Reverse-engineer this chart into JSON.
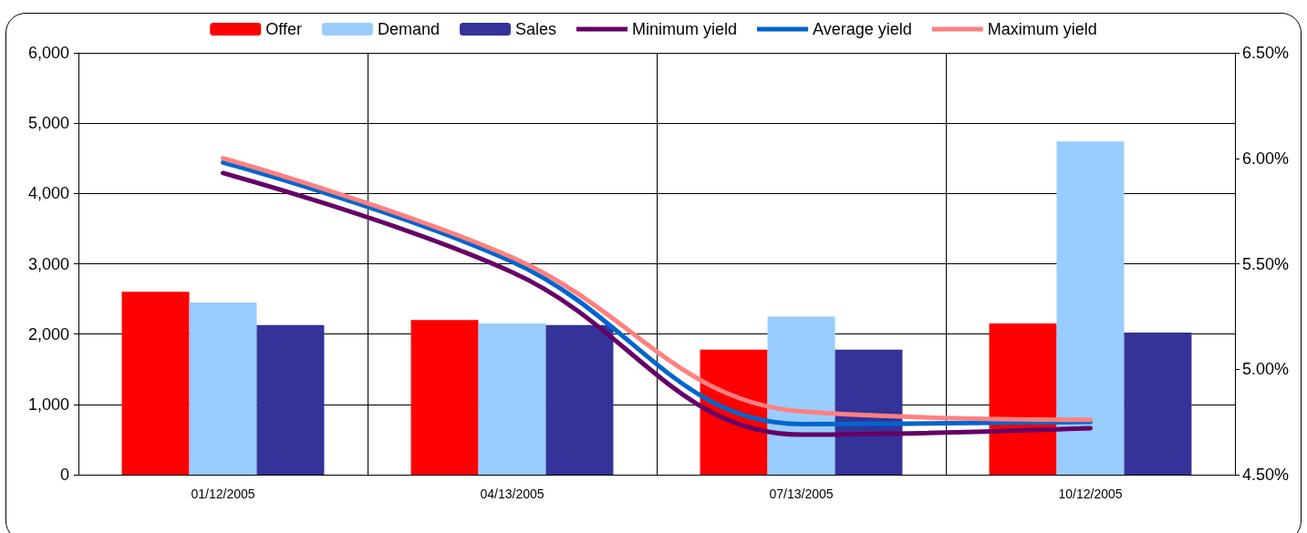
{
  "chart_data": {
    "type": "bar",
    "categories": [
      "01/12/2005",
      "04/13/2005",
      "07/13/2005",
      "10/12/2005"
    ],
    "series": [
      {
        "name": "Offer",
        "color": "#ff0000",
        "values": [
          2600,
          2200,
          1780,
          2150
        ]
      },
      {
        "name": "Demand",
        "color": "#99ccff",
        "values": [
          2450,
          2150,
          2250,
          4740
        ]
      },
      {
        "name": "Sales",
        "color": "#333399",
        "values": [
          2130,
          2130,
          1780,
          2020
        ]
      },
      {
        "name": "Minimum yield",
        "type": "line",
        "axis": "y2",
        "color": "#660066",
        "values": [
          5.93,
          5.46,
          4.69,
          4.72
        ]
      },
      {
        "name": "Average yield",
        "type": "line",
        "axis": "y2",
        "color": "#0066cc",
        "values": [
          5.98,
          5.51,
          4.74,
          4.75
        ]
      },
      {
        "name": "Maximum yield",
        "type": "line",
        "axis": "y2",
        "color": "#ff8080",
        "values": [
          6.0,
          5.53,
          4.8,
          4.76
        ]
      }
    ],
    "ylim": [
      0,
      6000
    ],
    "yticks": [
      {
        "value": 0,
        "label": "0"
      },
      {
        "value": 1000,
        "label": "1,000"
      },
      {
        "value": 2000,
        "label": "2,000"
      },
      {
        "value": 3000,
        "label": "3,000"
      },
      {
        "value": 4000,
        "label": "4,000"
      },
      {
        "value": 5000,
        "label": "5,000"
      },
      {
        "value": 6000,
        "label": "6,000"
      }
    ],
    "y2lim": [
      4.5,
      6.5
    ],
    "y2ticks": [
      {
        "value": 4.5,
        "label": "4.50%"
      },
      {
        "value": 5.0,
        "label": "5.00%"
      },
      {
        "value": 5.5,
        "label": "5.50%"
      },
      {
        "value": 6.0,
        "label": "6.00%"
      },
      {
        "value": 6.5,
        "label": "6.50%"
      }
    ],
    "grid": true,
    "legend": "top",
    "line_style": "solid",
    "marker": "none"
  }
}
